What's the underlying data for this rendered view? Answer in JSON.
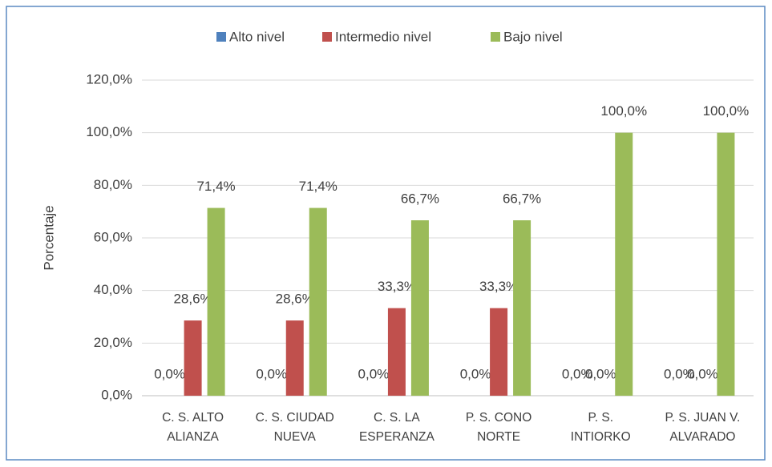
{
  "chart_data": {
    "type": "bar",
    "y_label": "Porcentaje",
    "categories": [
      "C. S. ALTO ALIANZA",
      "C. S. CIUDAD NUEVA",
      "C. S. LA ESPERANZA",
      "P. S. CONO NORTE",
      "P. S. INTIORKO",
      "P. S. JUAN V. ALVARADO"
    ],
    "series": [
      {
        "name": "Alto nivel",
        "color": "#4f81bd",
        "values": [
          0,
          0,
          0,
          0,
          0,
          0
        ],
        "value_labels": [
          "0,0%",
          "0,0%",
          "0,0%",
          "0,0%",
          "0,0%",
          "0,0%"
        ]
      },
      {
        "name": "Intermedio nivel",
        "color": "#c0504d",
        "values": [
          28.6,
          28.6,
          33.3,
          33.3,
          0,
          0
        ],
        "value_labels": [
          "28,6%",
          "28,6%",
          "33,3%",
          "33,3%",
          "0,0%",
          "0,0%"
        ]
      },
      {
        "name": "Bajo nivel",
        "color": "#9bbb59",
        "values": [
          71.4,
          71.4,
          66.7,
          66.7,
          100,
          100
        ],
        "value_labels": [
          "71,4%",
          "71,4%",
          "66,7%",
          "66,7%",
          "100,0%",
          "100,0%"
        ]
      }
    ],
    "ylim": [
      0,
      120
    ],
    "yticks": [
      {
        "value": 0,
        "label": "0,0%"
      },
      {
        "value": 20,
        "label": "20,0%"
      },
      {
        "value": 40,
        "label": "40,0%"
      },
      {
        "value": 60,
        "label": "60,0%"
      },
      {
        "value": 80,
        "label": "80,0%"
      },
      {
        "value": 100,
        "label": "100,0%"
      },
      {
        "value": 120,
        "label": "120,0%"
      }
    ],
    "grid": true,
    "legend": "top"
  }
}
